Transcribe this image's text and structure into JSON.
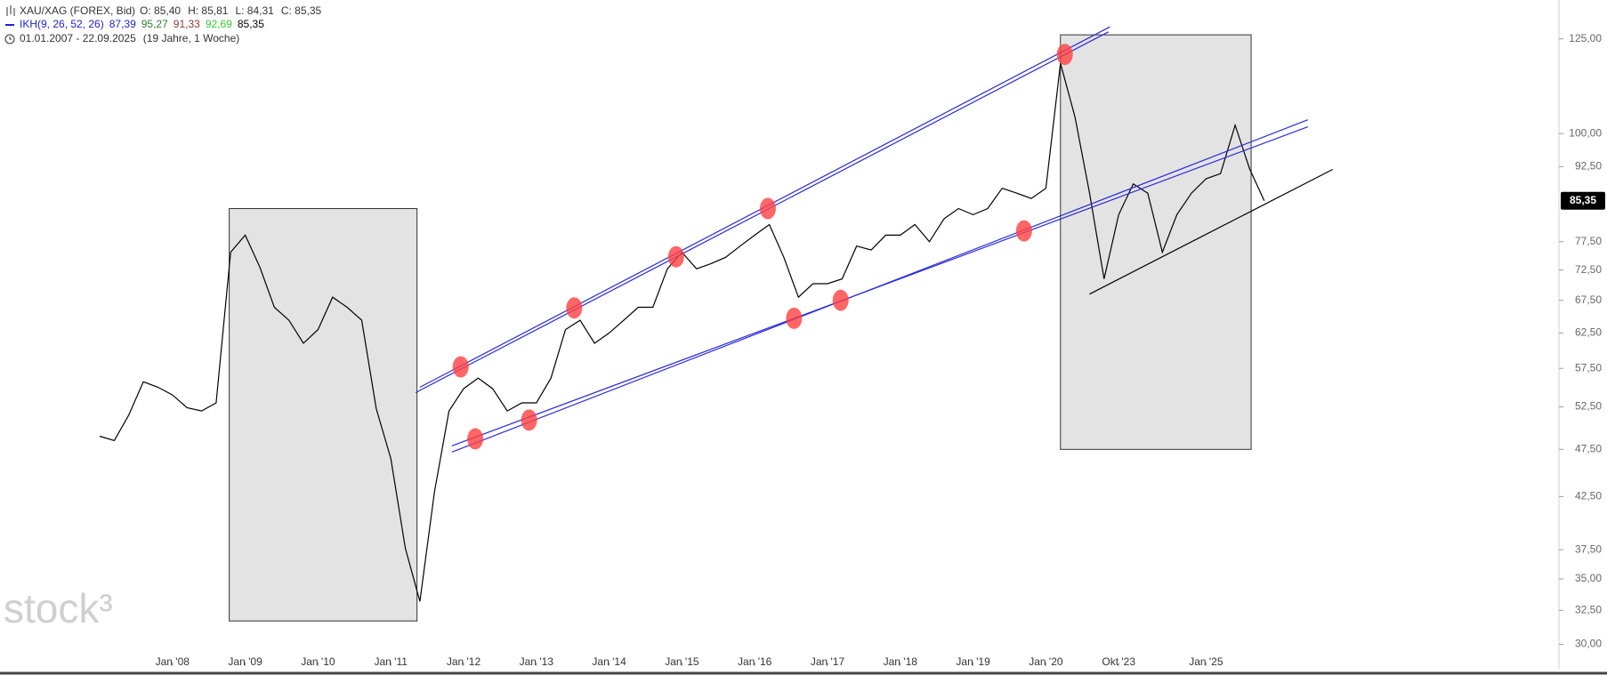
{
  "header": {
    "symbol": "XAU/XAG (FOREX, Bid)",
    "ohlc": [
      "O: 85,40",
      "H: 85,81",
      "L: 84,31",
      "C: 85,35"
    ],
    "indicator": "IKH(9, 26, 52, 26)",
    "indicator_color": "#2222cc",
    "indicator_values": [
      "87,39",
      "95,27",
      "91,33",
      "92,69",
      "85,35"
    ],
    "indicator_value_colors": [
      "#2222cc",
      "#2e7d32",
      "#8e3b3b",
      "#33cc33",
      "#000000"
    ],
    "range": "01.01.2007 - 22.09.2025",
    "duration": "(19 Jahre, 1 Woche)"
  },
  "watermark": "stock³",
  "chart_data": {
    "type": "line",
    "log_scale": true,
    "categories": [
      null,
      null,
      null,
      null,
      null,
      "Jan '08",
      null,
      null,
      null,
      null,
      "Jan '09",
      null,
      null,
      null,
      null,
      "Jan '10",
      null,
      null,
      null,
      null,
      "Jan '11",
      null,
      null,
      null,
      null,
      "Jan '12",
      null,
      null,
      null,
      null,
      "Jan '13",
      null,
      null,
      null,
      null,
      "Jan '14",
      null,
      null,
      null,
      null,
      "Jan '15",
      null,
      null,
      null,
      null,
      "Jan '16",
      null,
      null,
      null,
      null,
      "Jan '17",
      null,
      null,
      null,
      null,
      "Jan '18",
      null,
      null,
      null,
      null,
      "Jan '19",
      null,
      null,
      null,
      null,
      "Jan '20",
      null,
      null,
      null,
      null,
      "Okt '23",
      null,
      null,
      null,
      null,
      null,
      "Jan '25",
      null,
      null,
      null,
      null
    ],
    "series": [
      {
        "name": "XAU/XAG",
        "color": "#000000",
        "values": [
          49,
          48.5,
          51.5,
          55.7,
          55,
          54,
          52.4,
          52,
          53,
          75.6,
          78.7,
          73,
          66.4,
          64.4,
          61,
          63,
          68,
          66.4,
          64.4,
          52.3,
          46.5,
          37.6,
          33.2,
          43,
          52,
          54.8,
          56.2,
          54.8,
          52,
          53,
          53,
          56.2,
          63,
          64.4,
          61,
          62.5,
          64.4,
          66.4,
          66.4,
          72.7,
          75.6,
          72.7,
          73.6,
          74.7,
          76.7,
          78.7,
          80.7,
          74.7,
          68,
          70.2,
          70.2,
          71,
          76.7,
          76,
          78.7,
          78.7,
          80.7,
          77.5,
          81.8,
          83.8,
          82.6,
          83.8,
          87.9,
          86.9,
          85.8,
          87.9,
          118,
          104,
          86.9,
          71,
          82.6,
          88.8,
          86.9,
          75.6,
          82.6,
          86.9,
          89.9,
          91,
          102,
          92,
          85.35
        ]
      }
    ],
    "ylim": [
      28.5,
      137
    ],
    "yticks": [
      {
        "value": 30,
        "label": "30,00"
      },
      {
        "value": 32.5,
        "label": "32,50"
      },
      {
        "value": 35,
        "label": "35,00"
      },
      {
        "value": 37.5,
        "label": "37,50"
      },
      {
        "value": 42.5,
        "label": "42,50"
      },
      {
        "value": 47.5,
        "label": "47,50"
      },
      {
        "value": 52.5,
        "label": "52,50"
      },
      {
        "value": 57.5,
        "label": "57,50"
      },
      {
        "value": 62.5,
        "label": "62,50"
      },
      {
        "value": 67.5,
        "label": "67,50"
      },
      {
        "value": 72.5,
        "label": "72,50"
      },
      {
        "value": 77.5,
        "label": "77,50"
      },
      {
        "value": 92.5,
        "label": "92,50"
      },
      {
        "value": 100,
        "label": "100,00"
      },
      {
        "value": 125,
        "label": "125,00"
      }
    ],
    "last_price": {
      "value": 85.35,
      "label": "85,35"
    },
    "rectangles": [
      {
        "x": [
          8.9,
          21.8
        ],
        "y": [
          31.7,
          83.8
        ]
      },
      {
        "x": [
          66.0,
          79.1
        ],
        "y": [
          47.5,
          126.2
        ]
      }
    ],
    "trendlines": [
      {
        "color": "#2b2bd6",
        "x": [
          21.7,
          69.3
        ],
        "y": [
          54.3,
          127.1
        ]
      },
      {
        "color": "#2b2bd6",
        "x": [
          22.0,
          69.4
        ],
        "y": [
          55.0,
          128.6
        ]
      },
      {
        "color": "#2b2bd6",
        "x": [
          24.2,
          83.0
        ],
        "y": [
          47.2,
          103.3
        ]
      },
      {
        "color": "#2b2bd6",
        "x": [
          24.2,
          83.0
        ],
        "y": [
          47.9,
          101.6
        ]
      },
      {
        "color": "#000000",
        "x": [
          68.0,
          84.7
        ],
        "y": [
          68.5,
          91.9
        ]
      }
    ],
    "markers": {
      "color": "#ff4040",
      "x": [
        24.8,
        25.8,
        29.5,
        32.6,
        39.6,
        45.9,
        47.7,
        50.9,
        63.5,
        66.3
      ],
      "y": [
        57.7,
        48.7,
        50.9,
        66.3,
        74.8,
        83.8,
        64.7,
        67.5,
        79.5,
        120.5
      ]
    }
  }
}
